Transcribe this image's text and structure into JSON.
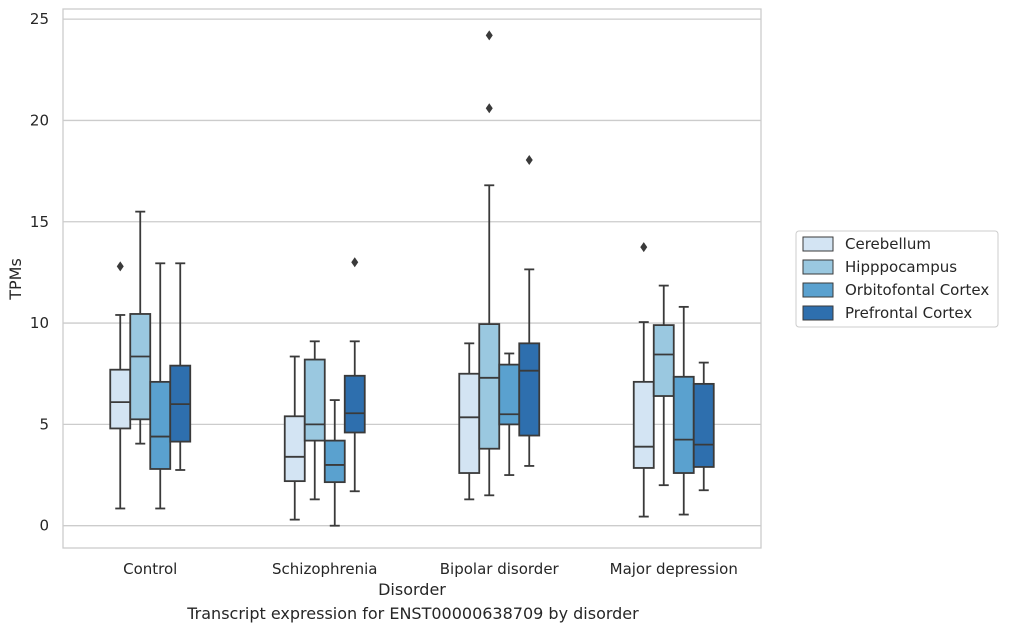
{
  "caption": "Transcript expression for ENST00000638709 by disorder",
  "colors": {
    "Cerebellum": "#d3e4f3",
    "Hipppocampus": "#9ac8e0",
    "Orbitofontal Cortex": "#5aa1cf",
    "Prefrontal Cortex": "#2e6fae",
    "line": "#3a3a3a",
    "grid": "#cccccc"
  },
  "chart_data": {
    "type": "box",
    "title": "",
    "xlabel": "Disorder",
    "ylabel": "TPMs",
    "ylim": [
      -1.1,
      25.5
    ],
    "yticks": [
      0,
      5,
      10,
      15,
      20,
      25
    ],
    "grid": "horizontal",
    "legend": "right",
    "categories": [
      "Control",
      "Schizophrenia",
      "Bipolar disorder",
      "Major depression"
    ],
    "series": [
      {
        "name": "Cerebellum",
        "boxes": [
          {
            "whislo": 0.85,
            "q1": 4.8,
            "med": 6.1,
            "q3": 7.7,
            "whishi": 10.4,
            "fliers": [
              12.8
            ]
          },
          {
            "whislo": 0.3,
            "q1": 2.2,
            "med": 3.4,
            "q3": 5.4,
            "whishi": 8.35,
            "fliers": []
          },
          {
            "whislo": 1.3,
            "q1": 2.6,
            "med": 5.35,
            "q3": 7.5,
            "whishi": 9.0,
            "fliers": []
          },
          {
            "whislo": 0.45,
            "q1": 2.85,
            "med": 3.9,
            "q3": 7.1,
            "whishi": 10.05,
            "fliers": [
              13.75
            ]
          }
        ]
      },
      {
        "name": "Hipppocampus",
        "boxes": [
          {
            "whislo": 4.05,
            "q1": 5.25,
            "med": 8.35,
            "q3": 10.45,
            "whishi": 15.5,
            "fliers": []
          },
          {
            "whislo": 1.3,
            "q1": 4.2,
            "med": 5.0,
            "q3": 8.2,
            "whishi": 9.1,
            "fliers": []
          },
          {
            "whislo": 1.5,
            "q1": 3.8,
            "med": 7.3,
            "q3": 9.95,
            "whishi": 16.8,
            "fliers": [
              20.6,
              24.2
            ]
          },
          {
            "whislo": 2.0,
            "q1": 6.4,
            "med": 8.45,
            "q3": 9.9,
            "whishi": 11.85,
            "fliers": []
          }
        ]
      },
      {
        "name": "Orbitofontal Cortex",
        "boxes": [
          {
            "whislo": 0.85,
            "q1": 2.8,
            "med": 4.4,
            "q3": 7.1,
            "whishi": 12.95,
            "fliers": []
          },
          {
            "whislo": 0.0,
            "q1": 2.15,
            "med": 3.0,
            "q3": 4.2,
            "whishi": 6.2,
            "fliers": []
          },
          {
            "whislo": 2.5,
            "q1": 5.0,
            "med": 5.5,
            "q3": 7.95,
            "whishi": 8.5,
            "fliers": []
          },
          {
            "whislo": 0.55,
            "q1": 2.6,
            "med": 4.25,
            "q3": 7.35,
            "whishi": 10.8,
            "fliers": []
          }
        ]
      },
      {
        "name": "Prefrontal Cortex",
        "boxes": [
          {
            "whislo": 2.75,
            "q1": 4.15,
            "med": 6.0,
            "q3": 7.9,
            "whishi": 12.95,
            "fliers": []
          },
          {
            "whislo": 1.7,
            "q1": 4.6,
            "med": 5.55,
            "q3": 7.4,
            "whishi": 9.1,
            "fliers": [
              13.0
            ]
          },
          {
            "whislo": 2.95,
            "q1": 4.45,
            "med": 7.65,
            "q3": 9.0,
            "whishi": 12.65,
            "fliers": [
              18.05
            ]
          },
          {
            "whislo": 1.75,
            "q1": 2.9,
            "med": 4.0,
            "q3": 7.0,
            "whishi": 8.05,
            "fliers": []
          }
        ]
      }
    ]
  }
}
